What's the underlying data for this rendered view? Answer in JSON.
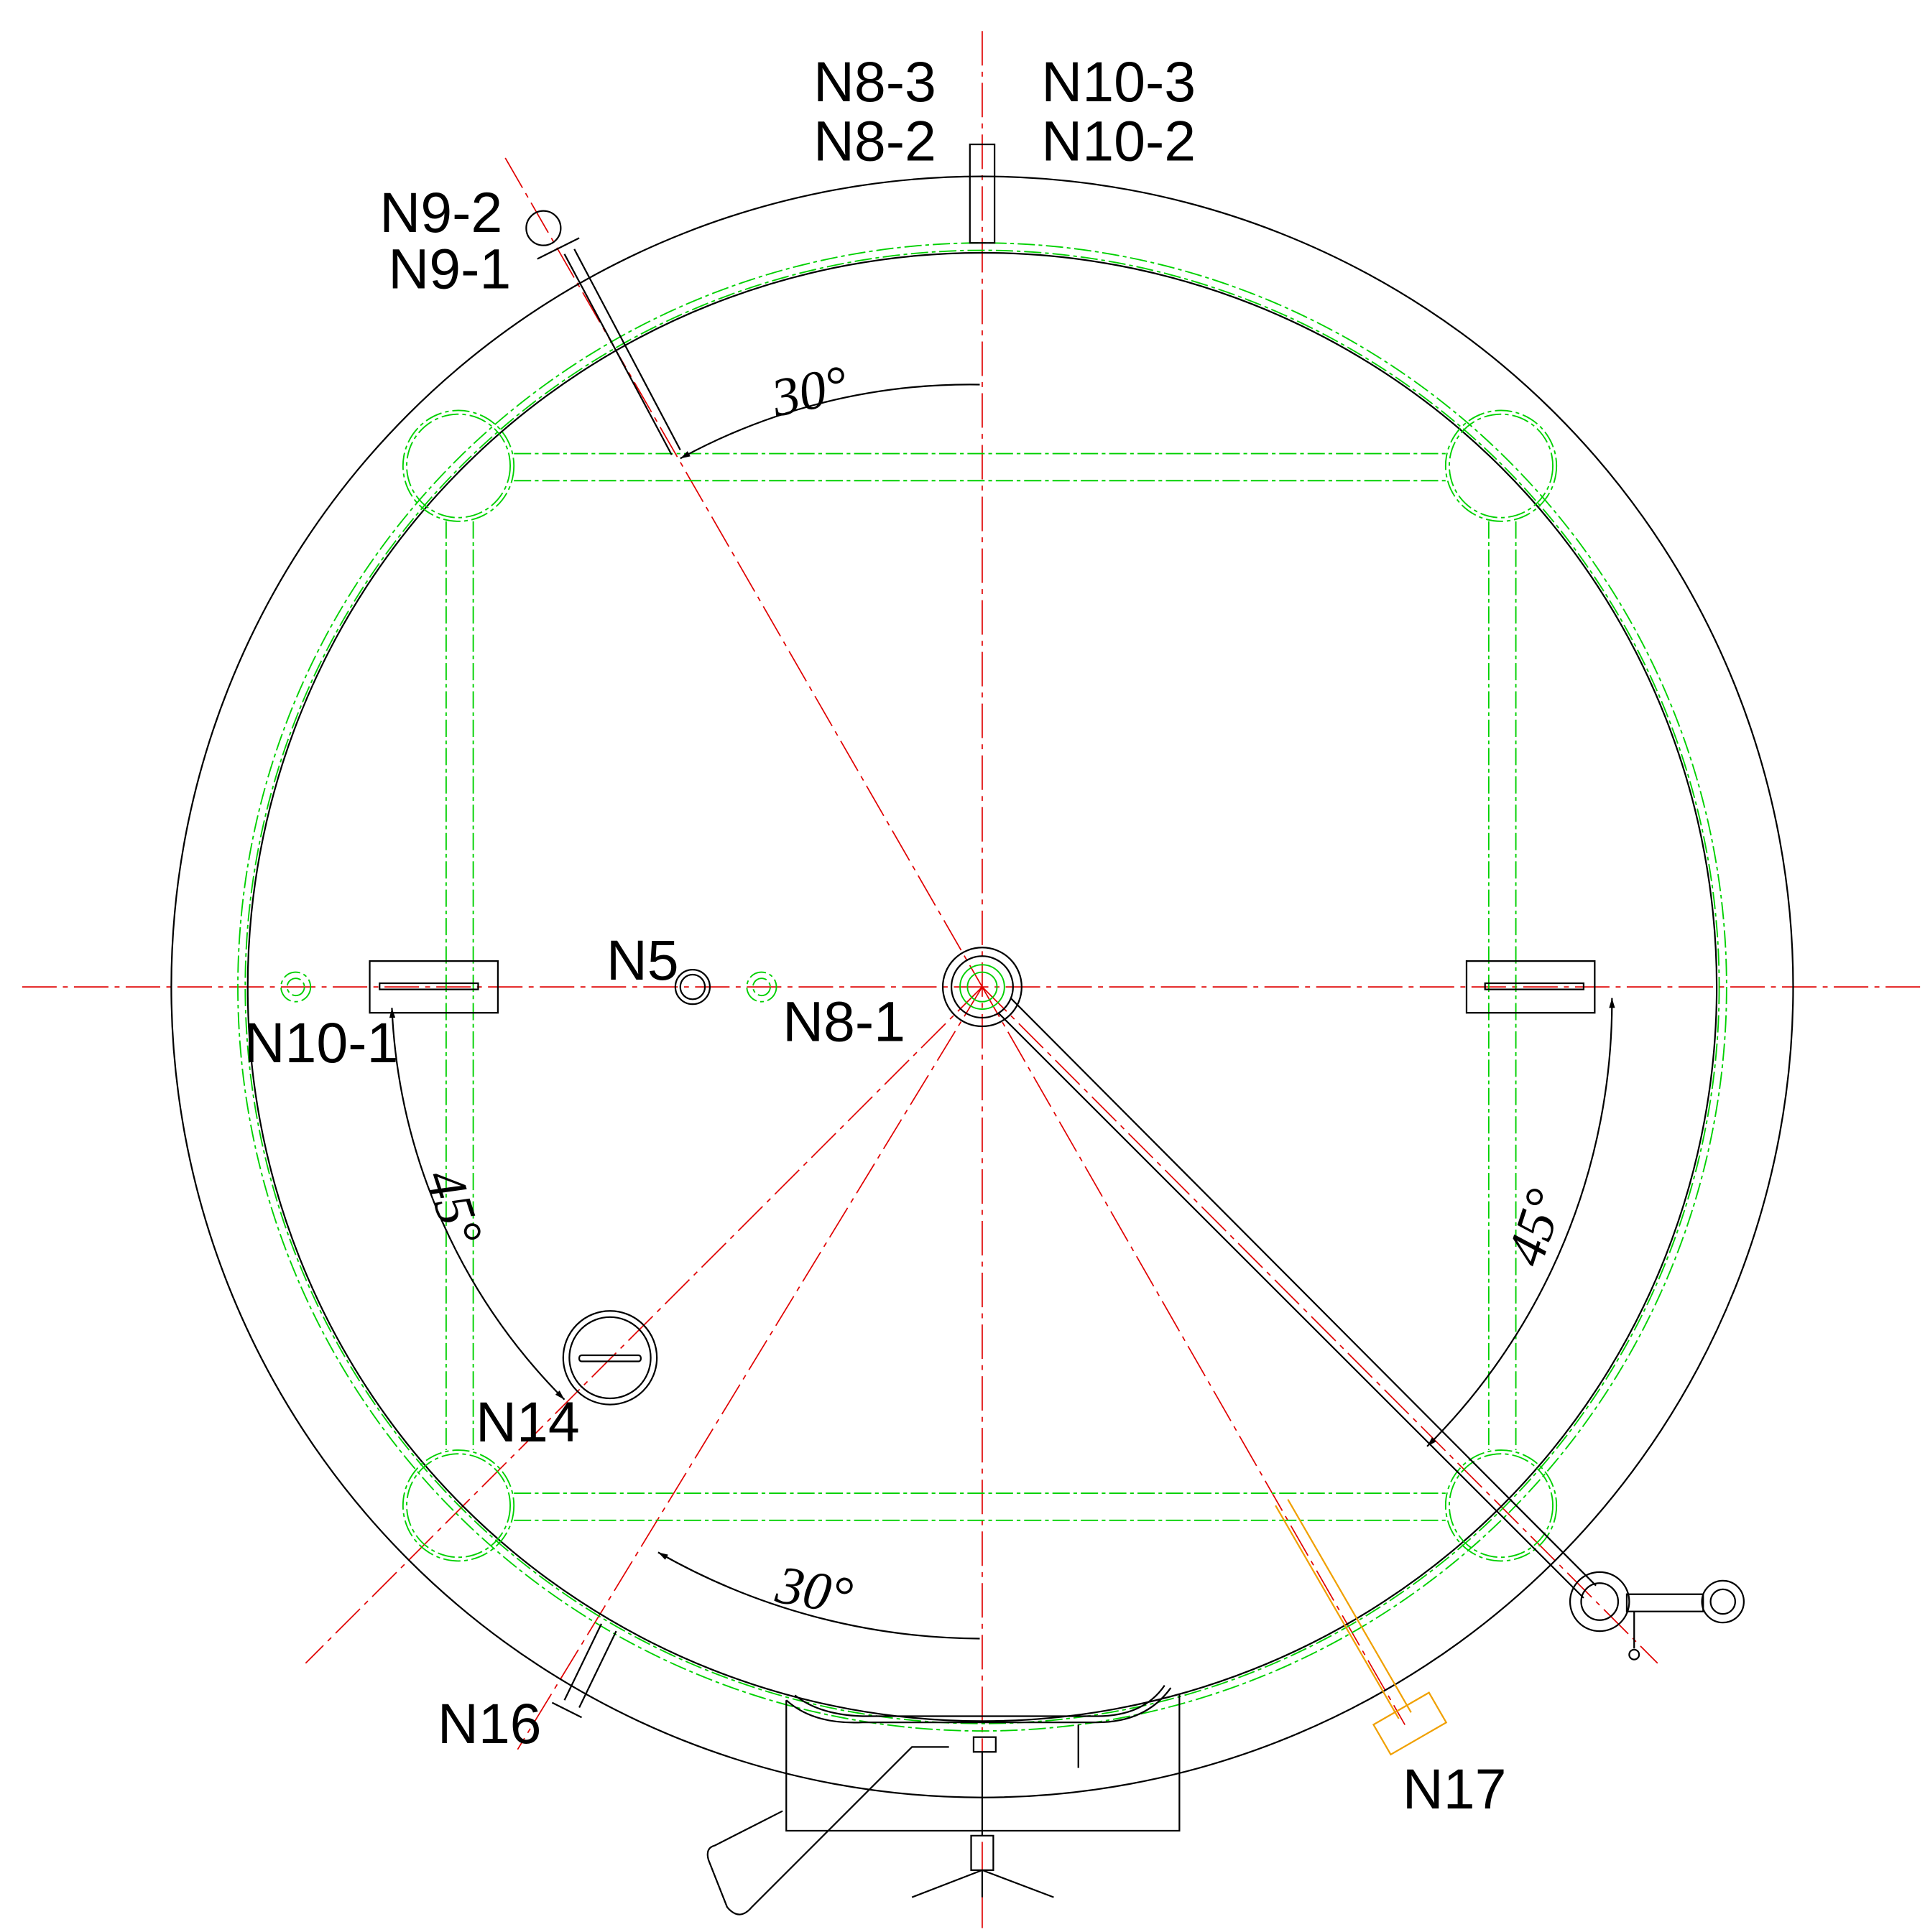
{
  "nozzles": [
    {
      "label": "N8-3"
    },
    {
      "label": "N8-2"
    },
    {
      "label": "N10-3"
    },
    {
      "label": "N10-2"
    },
    {
      "label": "N9-2"
    },
    {
      "label": "N9-1"
    },
    {
      "label": "N5"
    },
    {
      "label": "N8-1"
    },
    {
      "label": "N10-1"
    },
    {
      "label": "N14"
    },
    {
      "label": "N16"
    },
    {
      "label": "N17"
    }
  ],
  "angles": [
    {
      "label": "30°"
    },
    {
      "label": "45°"
    },
    {
      "label": "45°"
    },
    {
      "label": "30°"
    }
  ]
}
